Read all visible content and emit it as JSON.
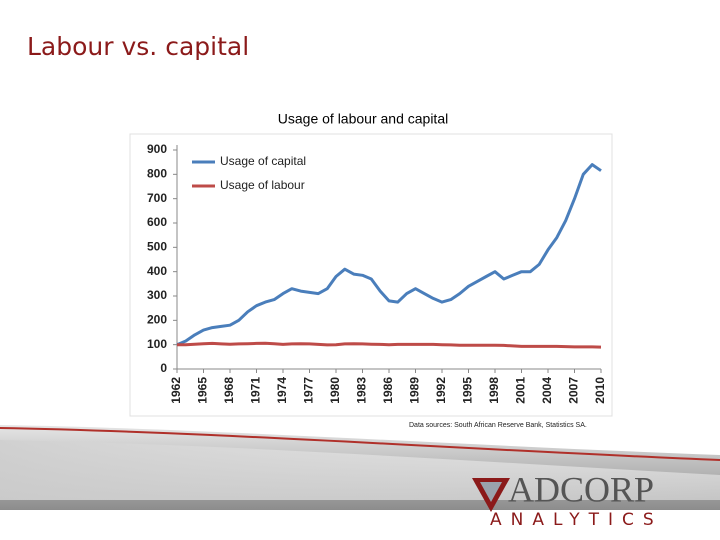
{
  "slide": {
    "title": "Labour vs. capital",
    "source": "Data sources: South African Reserve Bank, Statistics SA."
  },
  "logo": {
    "name": "ADCORP",
    "tagline": "ANALYTICS"
  },
  "chart_data": {
    "type": "line",
    "title": "Usage of labour and capital",
    "x": [
      1962,
      1963,
      1964,
      1965,
      1966,
      1967,
      1968,
      1969,
      1970,
      1971,
      1972,
      1973,
      1974,
      1975,
      1976,
      1977,
      1978,
      1979,
      1980,
      1981,
      1982,
      1983,
      1984,
      1985,
      1986,
      1987,
      1988,
      1989,
      1990,
      1991,
      1992,
      1993,
      1994,
      1995,
      1996,
      1997,
      1998,
      1999,
      2000,
      2001,
      2002,
      2003,
      2004,
      2005,
      2006,
      2007,
      2008,
      2009,
      2010
    ],
    "series": [
      {
        "name": "Usage of capital",
        "color": "#4a7ebb",
        "values": [
          100,
          115,
          140,
          160,
          170,
          175,
          180,
          200,
          235,
          260,
          275,
          285,
          310,
          330,
          320,
          315,
          310,
          330,
          380,
          410,
          390,
          385,
          370,
          320,
          280,
          275,
          310,
          330,
          310,
          290,
          275,
          285,
          310,
          340,
          360,
          380,
          400,
          370,
          385,
          400,
          400,
          430,
          490,
          540,
          610,
          700,
          800,
          840,
          815
        ]
      },
      {
        "name": "Usage of labour",
        "color": "#be4b48",
        "values": [
          100,
          100,
          102,
          104,
          105,
          103,
          102,
          103,
          104,
          105,
          106,
          104,
          101,
          103,
          104,
          103,
          101,
          99,
          100,
          103,
          104,
          103,
          102,
          101,
          100,
          101,
          101,
          101,
          101,
          101,
          100,
          99,
          98,
          98,
          98,
          98,
          98,
          97,
          95,
          93,
          93,
          93,
          93,
          93,
          92,
          91,
          91,
          91,
          90
        ]
      }
    ],
    "xlim": [
      1962,
      2010
    ],
    "xticks": [
      1962,
      1965,
      1968,
      1971,
      1974,
      1977,
      1980,
      1983,
      1986,
      1989,
      1992,
      1995,
      1998,
      2001,
      2004,
      2007,
      2010
    ],
    "ylim": [
      0,
      900
    ],
    "yticks": [
      0,
      100,
      200,
      300,
      400,
      500,
      600,
      700,
      800,
      900
    ],
    "grid": false,
    "legend": "upper left"
  }
}
